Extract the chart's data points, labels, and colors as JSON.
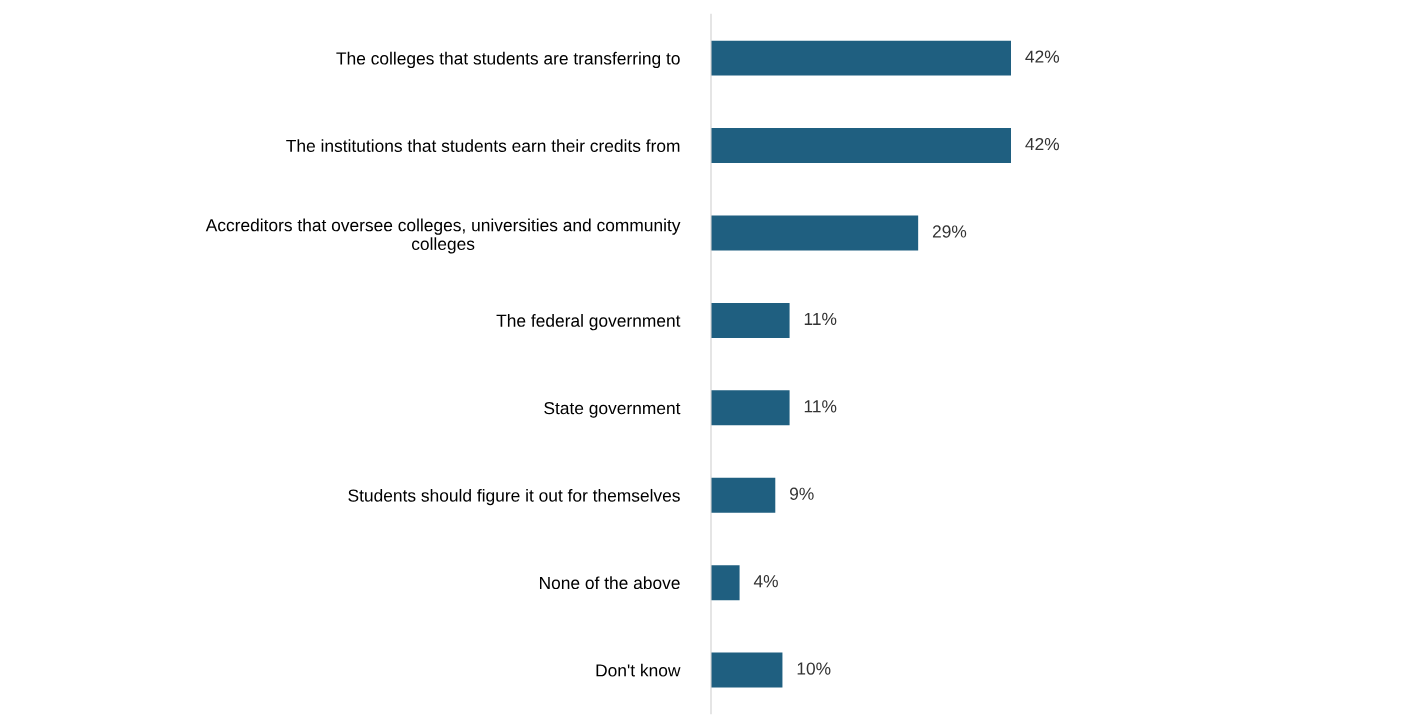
{
  "chart_data": {
    "type": "bar",
    "orientation": "horizontal",
    "categories": [
      "The colleges that students are transferring to",
      "The institutions that students earn their credits from",
      "Accreditors that oversee colleges, universities and community\ncolleges",
      "The federal government",
      "State government",
      "Students should figure it out for themselves",
      "None of the above",
      "Don't know"
    ],
    "values": [
      42,
      42,
      29,
      11,
      11,
      9,
      4,
      10
    ],
    "value_labels": [
      "42%",
      "42%",
      "29%",
      "11%",
      "11%",
      "9%",
      "4%",
      "10%"
    ],
    "color": "#1f5f80",
    "grid": false,
    "legend": false
  }
}
